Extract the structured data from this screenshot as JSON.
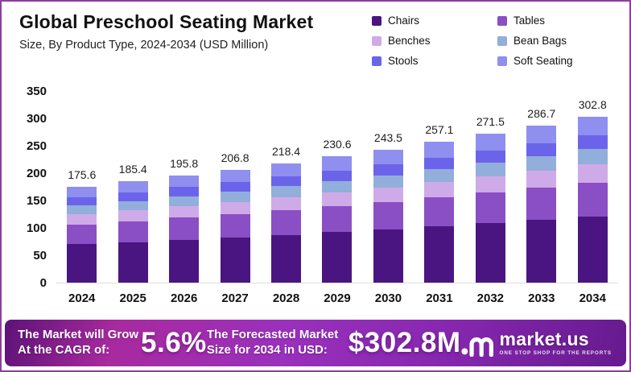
{
  "header": {
    "title": "Global Preschool Seating Market",
    "subtitle": "Size, By Product Type, 2024-2034 (USD Million)"
  },
  "chart_data": {
    "type": "bar",
    "stacked": true,
    "title": "Global Preschool Seating Market Size, By Product Type, 2024-2034 (USD Million)",
    "xlabel": "",
    "ylabel": "USD Million",
    "ylim": [
      0,
      350
    ],
    "yticks": [
      0,
      50,
      100,
      150,
      200,
      250,
      300,
      350
    ],
    "grid": false,
    "legend_position": "top-right",
    "categories": [
      "2024",
      "2025",
      "2026",
      "2027",
      "2028",
      "2029",
      "2030",
      "2031",
      "2032",
      "2033",
      "2034"
    ],
    "totals": [
      175.6,
      185.4,
      195.8,
      206.8,
      218.4,
      230.6,
      243.5,
      257.1,
      271.5,
      286.7,
      302.8
    ],
    "series": [
      {
        "name": "Chairs",
        "color": "#4a1580",
        "values": [
          70.3,
          74.1,
          78.5,
          82.8,
          87.3,
          92.1,
          97.4,
          102.8,
          108.5,
          114.7,
          121.1
        ]
      },
      {
        "name": "Tables",
        "color": "#8a4ec5",
        "values": [
          36.0,
          38.0,
          40.1,
          42.4,
          44.8,
          47.3,
          49.9,
          52.7,
          55.7,
          58.8,
          62.1
        ]
      },
      {
        "name": "Benches",
        "color": "#cfaae8",
        "values": [
          19.3,
          20.4,
          21.5,
          22.7,
          24.0,
          25.4,
          26.8,
          28.3,
          29.9,
          31.5,
          33.3
        ]
      },
      {
        "name": "Bean Bags",
        "color": "#92aedb",
        "values": [
          15.8,
          16.7,
          17.6,
          18.6,
          19.7,
          20.8,
          21.9,
          23.1,
          24.4,
          25.8,
          27.3
        ]
      },
      {
        "name": "Stools",
        "color": "#6b64ea",
        "values": [
          14.9,
          15.8,
          16.6,
          17.6,
          18.6,
          19.6,
          20.7,
          21.9,
          23.1,
          24.4,
          25.7
        ]
      },
      {
        "name": "Soft Seating",
        "color": "#8f8ff0",
        "values": [
          19.3,
          20.4,
          21.5,
          22.7,
          24.0,
          25.4,
          26.8,
          28.3,
          29.9,
          31.5,
          33.3
        ]
      }
    ]
  },
  "banner": {
    "cagr_label": "The Market will Grow At the CAGR of:",
    "cagr_value": "5.6%",
    "forecast_label": "The Forecasted Market Size for 2034 in USD:",
    "forecast_value": "$302.8M",
    "brand_name": "market.us",
    "brand_tagline": "ONE STOP SHOP FOR THE REPORTS"
  },
  "colors": {
    "page_border": "#8e3f9e",
    "axis_text": "#111111",
    "value_label": "#1d1d1d",
    "baseline": "#dddddd",
    "banner_gradient_start": "#5e1277",
    "banner_gradient_mid": "#9a30bd",
    "banner_gradient_end": "#661a8e"
  }
}
